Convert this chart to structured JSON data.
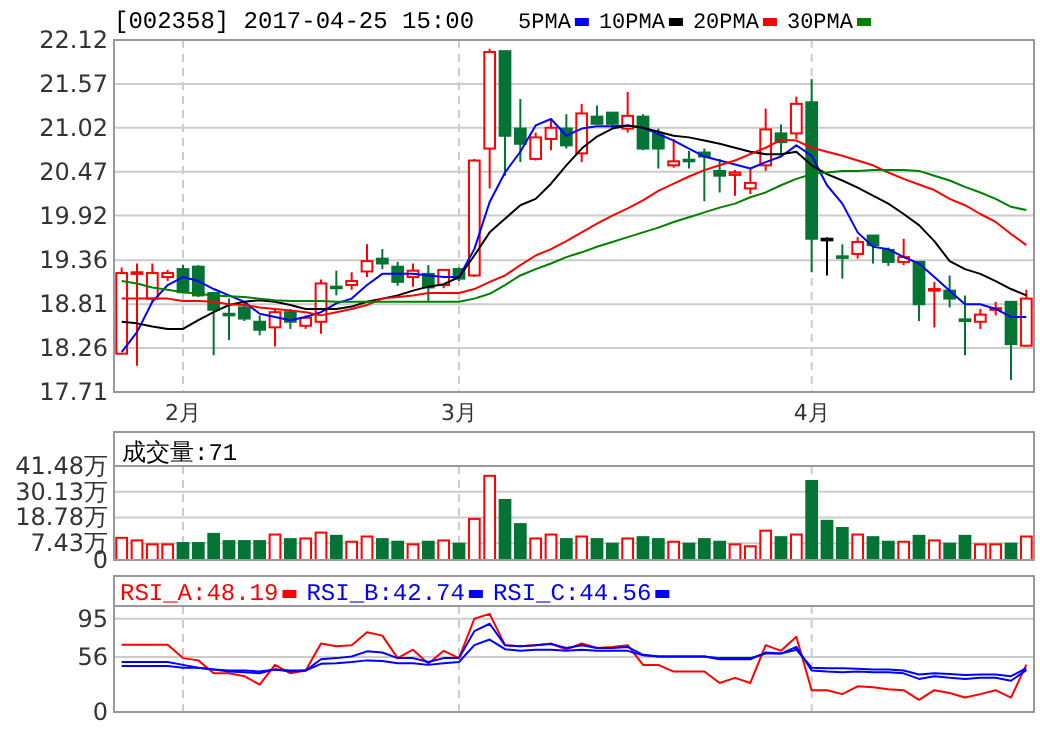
{
  "chart_data": [
    {
      "type": "candlestick",
      "title": "[002358] 2017-04-25 15:00",
      "legend": "top",
      "grid": true,
      "categories": [
        null,
        null,
        null,
        null,
        "2月",
        null,
        null,
        null,
        null,
        null,
        null,
        null,
        null,
        null,
        null,
        null,
        null,
        null,
        null,
        null,
        null,
        null,
        "3月",
        null,
        null,
        null,
        null,
        null,
        null,
        null,
        null,
        null,
        null,
        null,
        null,
        null,
        null,
        null,
        null,
        null,
        null,
        null,
        null,
        null,
        null,
        "4月",
        null,
        null,
        null,
        null,
        null,
        null,
        null,
        null,
        null,
        null,
        null,
        null,
        null,
        null
      ],
      "ylim": [
        17.71,
        22.12
      ],
      "yticks": [
        17.71,
        18.26,
        18.81,
        19.36,
        19.92,
        20.47,
        21.02,
        21.57,
        22.12
      ],
      "ohlc": [
        [
          18.19,
          19.27,
          18.19,
          19.2
        ],
        [
          19.2,
          19.32,
          18.04,
          19.21
        ],
        [
          18.88,
          19.32,
          18.84,
          19.2
        ],
        [
          19.15,
          19.24,
          19.1,
          19.2
        ],
        [
          19.25,
          19.3,
          18.95,
          18.96
        ],
        [
          19.28,
          19.3,
          18.9,
          18.92
        ],
        [
          18.95,
          18.96,
          18.17,
          18.74
        ],
        [
          18.69,
          18.88,
          18.36,
          18.68
        ],
        [
          18.77,
          18.84,
          18.6,
          18.63
        ],
        [
          18.59,
          18.67,
          18.42,
          18.49
        ],
        [
          18.52,
          18.75,
          18.28,
          18.71
        ],
        [
          18.71,
          18.75,
          18.5,
          18.59
        ],
        [
          18.54,
          18.67,
          18.5,
          18.64
        ],
        [
          18.59,
          19.12,
          18.44,
          19.07
        ],
        [
          19.03,
          19.23,
          18.92,
          19.01
        ],
        [
          19.05,
          19.21,
          18.99,
          19.1
        ],
        [
          19.22,
          19.56,
          19.15,
          19.35
        ],
        [
          19.38,
          19.5,
          19.25,
          19.32
        ],
        [
          19.28,
          19.34,
          19.04,
          19.09
        ],
        [
          19.15,
          19.32,
          19.03,
          19.23
        ],
        [
          19.19,
          19.3,
          18.84,
          19.02
        ],
        [
          19.05,
          19.25,
          19.01,
          19.24
        ],
        [
          19.25,
          19.27,
          19.1,
          19.13
        ],
        [
          19.17,
          20.63,
          19.15,
          20.61
        ],
        [
          20.76,
          22.01,
          20.26,
          21.97
        ],
        [
          21.98,
          21.98,
          20.42,
          20.92
        ],
        [
          21.01,
          21.38,
          20.59,
          20.82
        ],
        [
          20.63,
          20.96,
          20.61,
          20.9
        ],
        [
          20.88,
          21.13,
          20.74,
          21.02
        ],
        [
          21.01,
          21.19,
          20.76,
          20.8
        ],
        [
          20.7,
          21.32,
          20.59,
          21.2
        ],
        [
          21.16,
          21.3,
          21.07,
          21.07
        ],
        [
          21.21,
          21.21,
          21.01,
          21.07
        ],
        [
          21.01,
          21.47,
          20.96,
          21.17
        ],
        [
          21.16,
          21.19,
          20.74,
          20.76
        ],
        [
          20.94,
          21.01,
          20.51,
          20.76
        ],
        [
          20.55,
          20.88,
          20.52,
          20.6
        ],
        [
          20.62,
          20.73,
          20.51,
          20.61
        ],
        [
          20.71,
          20.76,
          20.1,
          20.66
        ],
        [
          20.48,
          20.63,
          20.21,
          20.42
        ],
        [
          20.43,
          20.49,
          20.17,
          20.46
        ],
        [
          20.26,
          20.51,
          20.19,
          20.33
        ],
        [
          20.55,
          21.26,
          20.48,
          21.0
        ],
        [
          20.95,
          21.06,
          20.67,
          20.84
        ],
        [
          20.95,
          21.41,
          20.88,
          21.32
        ],
        [
          21.34,
          21.63,
          19.21,
          19.63
        ],
        [
          19.63,
          19.65,
          19.17,
          19.63
        ],
        [
          19.41,
          19.56,
          19.13,
          19.4
        ],
        [
          19.44,
          19.65,
          19.38,
          19.59
        ],
        [
          19.67,
          19.67,
          19.32,
          19.55
        ],
        [
          19.49,
          19.52,
          19.29,
          19.34
        ],
        [
          19.34,
          19.63,
          19.3,
          19.4
        ],
        [
          19.34,
          19.34,
          18.6,
          18.81
        ],
        [
          18.98,
          19.09,
          18.52,
          19.0
        ],
        [
          18.98,
          19.17,
          18.77,
          18.88
        ],
        [
          18.62,
          18.92,
          18.17,
          18.6
        ],
        [
          18.59,
          18.75,
          18.5,
          18.68
        ],
        [
          18.74,
          18.84,
          18.67,
          18.76
        ],
        [
          18.84,
          18.84,
          17.86,
          18.31
        ],
        [
          18.29,
          18.99,
          18.28,
          18.88
        ]
      ],
      "colors": [
        "#ff0000",
        "#ff0000",
        "#ff0000",
        "#ff0000",
        "#047434",
        "#047434",
        "#047434",
        "#047434",
        "#047434",
        "#047434",
        "#ff0000",
        "#047434",
        "#ff0000",
        "#ff0000",
        "#047434",
        "#ff0000",
        "#ff0000",
        "#047434",
        "#047434",
        "#ff0000",
        "#047434",
        "#ff0000",
        "#047434",
        "#ff0000",
        "#ff0000",
        "#047434",
        "#047434",
        "#ff0000",
        "#ff0000",
        "#047434",
        "#ff0000",
        "#047434",
        "#047434",
        "#ff0000",
        "#047434",
        "#047434",
        "#ff0000",
        "#047434",
        "#047434",
        "#047434",
        "#ff0000",
        "#ff0000",
        "#ff0000",
        "#047434",
        "#ff0000",
        "#047434",
        "#000000",
        "#047434",
        "#ff0000",
        "#047434",
        "#047434",
        "#ff0000",
        "#047434",
        "#ff0000",
        "#047434",
        "#047434",
        "#ff0000",
        "#ff0000",
        "#047434",
        "#ff0000"
      ],
      "series": [
        {
          "name": "5PMA",
          "type": "line",
          "color": "#0000ff",
          "values": [
            18.21,
            18.46,
            18.84,
            19.05,
            19.15,
            19.1,
            19.0,
            18.92,
            18.84,
            18.69,
            18.65,
            18.61,
            18.65,
            18.71,
            18.82,
            18.88,
            19.05,
            19.19,
            19.19,
            19.19,
            19.17,
            19.15,
            19.15,
            19.5,
            20.09,
            20.46,
            20.72,
            21.05,
            21.13,
            20.92,
            21.01,
            21.04,
            21.04,
            21.05,
            21.02,
            20.94,
            20.86,
            20.76,
            20.66,
            20.61,
            20.56,
            20.51,
            20.59,
            20.66,
            20.8,
            20.67,
            20.3,
            20.07,
            19.71,
            19.53,
            19.5,
            19.4,
            19.32,
            19.15,
            18.98,
            18.81,
            18.81,
            18.75,
            18.65,
            18.65
          ]
        },
        {
          "name": "10PMA",
          "type": "line",
          "color": "#000000",
          "values": [
            18.59,
            18.57,
            18.53,
            18.5,
            18.5,
            18.61,
            18.71,
            18.8,
            18.84,
            18.86,
            18.84,
            18.8,
            18.75,
            18.75,
            18.75,
            18.78,
            18.84,
            18.88,
            18.92,
            18.98,
            19.03,
            19.06,
            19.15,
            19.42,
            19.71,
            19.88,
            20.05,
            20.13,
            20.32,
            20.55,
            20.76,
            20.91,
            21.01,
            21.05,
            21.02,
            20.97,
            20.92,
            20.9,
            20.86,
            20.82,
            20.77,
            20.72,
            20.69,
            20.69,
            20.72,
            20.55,
            20.44,
            20.36,
            20.27,
            20.17,
            20.07,
            19.94,
            19.8,
            19.6,
            19.35,
            19.25,
            19.19,
            19.1,
            19.0,
            18.92
          ]
        },
        {
          "name": "20PMA",
          "type": "line",
          "color": "#ff0000",
          "values": [
            18.88,
            18.88,
            18.88,
            18.88,
            18.85,
            18.85,
            18.84,
            18.81,
            18.8,
            18.77,
            18.75,
            18.73,
            18.71,
            18.67,
            18.71,
            18.75,
            18.8,
            18.88,
            18.9,
            18.92,
            18.95,
            18.95,
            18.95,
            19.0,
            19.09,
            19.17,
            19.3,
            19.42,
            19.5,
            19.6,
            19.71,
            19.82,
            19.92,
            20.01,
            20.11,
            20.23,
            20.32,
            20.41,
            20.49,
            20.55,
            20.61,
            20.69,
            20.77,
            20.87,
            20.86,
            20.77,
            20.72,
            20.67,
            20.61,
            20.55,
            20.46,
            20.38,
            20.31,
            20.24,
            20.13,
            20.05,
            19.94,
            19.84,
            19.69,
            19.55
          ]
        },
        {
          "name": "30PMA",
          "type": "line",
          "color": "#008000",
          "values": [
            19.1,
            19.07,
            19.02,
            18.99,
            18.96,
            18.94,
            18.92,
            18.91,
            18.9,
            18.88,
            18.86,
            18.85,
            18.85,
            18.85,
            18.84,
            18.84,
            18.84,
            18.84,
            18.84,
            18.84,
            18.84,
            18.84,
            18.84,
            18.88,
            18.94,
            19.05,
            19.17,
            19.25,
            19.32,
            19.4,
            19.46,
            19.53,
            19.59,
            19.65,
            19.71,
            19.77,
            19.84,
            19.9,
            19.96,
            20.02,
            20.07,
            20.15,
            20.21,
            20.3,
            20.38,
            20.44,
            20.46,
            20.48,
            20.48,
            20.49,
            20.49,
            20.49,
            20.48,
            20.42,
            20.36,
            20.28,
            20.21,
            20.13,
            20.03,
            19.99
          ]
        }
      ]
    },
    {
      "type": "bar",
      "title": "成交量:71",
      "grid": true,
      "tick_labels": "y",
      "categories": [
        null,
        null,
        null,
        null,
        null,
        null,
        null,
        null,
        null,
        null,
        null,
        null,
        null,
        null,
        null,
        null,
        null,
        null,
        null,
        null,
        null,
        null,
        null,
        null,
        null,
        null,
        null,
        null,
        null,
        null,
        null,
        null,
        null,
        null,
        null,
        null,
        null,
        null,
        null,
        null,
        null,
        null,
        null,
        null,
        null,
        null,
        null,
        null,
        null,
        null,
        null,
        null,
        null,
        null,
        null,
        null,
        null,
        null,
        null,
        null
      ],
      "ylim": [
        0,
        41.48
      ],
      "yticks": [
        0,
        {
          "value": 7.43,
          "label": "7.43万"
        },
        {
          "value": 18.78,
          "label": "18.78万"
        },
        {
          "value": 30.13,
          "label": "30.13万"
        },
        {
          "value": 41.48,
          "label": "41.48万"
        }
      ],
      "values": [
        9.79,
        8.64,
        6.91,
        6.91,
        7.49,
        7.49,
        11.52,
        8.35,
        8.35,
        8.35,
        11.23,
        9.22,
        9.5,
        12.1,
        10.66,
        8.06,
        10.37,
        9.22,
        8.06,
        6.91,
        8.06,
        8.64,
        7.2,
        18.14,
        37.15,
        26.5,
        15.84,
        9.5,
        11.23,
        9.22,
        10.37,
        9.22,
        7.2,
        9.5,
        10.08,
        9.22,
        8.06,
        7.2,
        9.22,
        8.06,
        6.91,
        6.05,
        12.96,
        10.08,
        11.23,
        34.85,
        17.28,
        14.11,
        11.23,
        10.08,
        8.06,
        8.06,
        10.66,
        8.64,
        7.2,
        10.66,
        6.91,
        6.91,
        7.2,
        10.37
      ],
      "colors": [
        "#ff0000",
        "#ff0000",
        "#ff0000",
        "#ff0000",
        "#047434",
        "#047434",
        "#047434",
        "#047434",
        "#047434",
        "#047434",
        "#ff0000",
        "#047434",
        "#ff0000",
        "#ff0000",
        "#047434",
        "#ff0000",
        "#ff0000",
        "#047434",
        "#047434",
        "#ff0000",
        "#047434",
        "#ff0000",
        "#047434",
        "#ff0000",
        "#ff0000",
        "#047434",
        "#047434",
        "#ff0000",
        "#ff0000",
        "#047434",
        "#ff0000",
        "#047434",
        "#047434",
        "#ff0000",
        "#047434",
        "#047434",
        "#ff0000",
        "#047434",
        "#047434",
        "#047434",
        "#ff0000",
        "#ff0000",
        "#ff0000",
        "#047434",
        "#ff0000",
        "#047434",
        "#047434",
        "#047434",
        "#ff0000",
        "#047434",
        "#047434",
        "#ff0000",
        "#047434",
        "#ff0000",
        "#047434",
        "#047434",
        "#ff0000",
        "#ff0000",
        "#047434",
        "#ff0000"
      ]
    },
    {
      "type": "line",
      "legend": "top",
      "grid": true,
      "tick_labels": "y",
      "categories": [
        null,
        null,
        null,
        null,
        null,
        null,
        null,
        null,
        null,
        null,
        null,
        null,
        null,
        null,
        null,
        null,
        null,
        null,
        null,
        null,
        null,
        null,
        null,
        null,
        null,
        null,
        null,
        null,
        null,
        null,
        null,
        null,
        null,
        null,
        null,
        null,
        null,
        null,
        null,
        null,
        null,
        null,
        null,
        null,
        null,
        null,
        null,
        null,
        null,
        null,
        null,
        null,
        null,
        null,
        null,
        null,
        null,
        null,
        null,
        null
      ],
      "ylim": [
        0,
        108
      ],
      "yticks": [
        0,
        56,
        95
      ],
      "series": [
        {
          "name": "RSI_A:48.19",
          "color": "#ff0000",
          "values": [
            68.6,
            68.6,
            68.6,
            68.6,
            54.9,
            52.6,
            39.4,
            39.4,
            36.5,
            27.9,
            48.0,
            39.4,
            42.3,
            69.8,
            66.9,
            68.1,
            81.3,
            77.8,
            54.9,
            63.5,
            49.1,
            62.3,
            54.9,
            95.0,
            100,
            68.1,
            66.9,
            68.1,
            69.8,
            63.5,
            69.8,
            65.2,
            66.3,
            68.1,
            48.0,
            48.0,
            41.2,
            41.2,
            41.2,
            29.6,
            34.8,
            29.6,
            68.1,
            62.3,
            76.7,
            22.2,
            22.2,
            18.2,
            26.2,
            25.1,
            23.3,
            22.2,
            12.4,
            22.2,
            19.3,
            14.7,
            18.2,
            22.2,
            14.7,
            48.19
          ]
        },
        {
          "name": "RSI_B:42.74",
          "color": "#0000ff",
          "values": [
            50.9,
            50.9,
            50.9,
            50.9,
            48.0,
            45.1,
            43.4,
            41.2,
            40.5,
            39.4,
            43.4,
            41.2,
            42.3,
            53.7,
            54.9,
            56.6,
            61.8,
            60.6,
            54.9,
            54.9,
            50.9,
            54.9,
            54.9,
            82.4,
            89.9,
            68.1,
            66.9,
            68.1,
            69.2,
            65.2,
            68.1,
            65.2,
            65.2,
            66.3,
            58.3,
            56.6,
            56.6,
            56.6,
            56.6,
            53.7,
            53.7,
            53.7,
            60.6,
            59.5,
            66.3,
            42.3,
            41.2,
            40.5,
            41.2,
            40.5,
            40.5,
            39.4,
            33.7,
            36.5,
            34.8,
            33.7,
            34.8,
            34.8,
            31.9,
            42.74
          ]
        },
        {
          "name": "RSI_C:44.56",
          "color": "#0000ff",
          "values": [
            46.8,
            46.8,
            46.8,
            46.8,
            45.1,
            45.1,
            43.4,
            42.3,
            42.3,
            41.2,
            43.4,
            42.3,
            42.3,
            49.1,
            49.7,
            50.9,
            52.6,
            52.0,
            49.7,
            49.7,
            48.0,
            49.7,
            50.9,
            68.1,
            73.8,
            64.0,
            62.3,
            63.5,
            63.5,
            62.3,
            63.5,
            62.3,
            62.3,
            62.3,
            57.7,
            56.6,
            56.6,
            56.6,
            56.6,
            54.9,
            54.9,
            54.9,
            59.5,
            59.5,
            63.5,
            45.1,
            44.6,
            44.6,
            44.0,
            43.4,
            43.4,
            42.3,
            38.2,
            39.4,
            38.8,
            37.7,
            38.2,
            38.2,
            36.5,
            44.56
          ]
        }
      ]
    }
  ]
}
